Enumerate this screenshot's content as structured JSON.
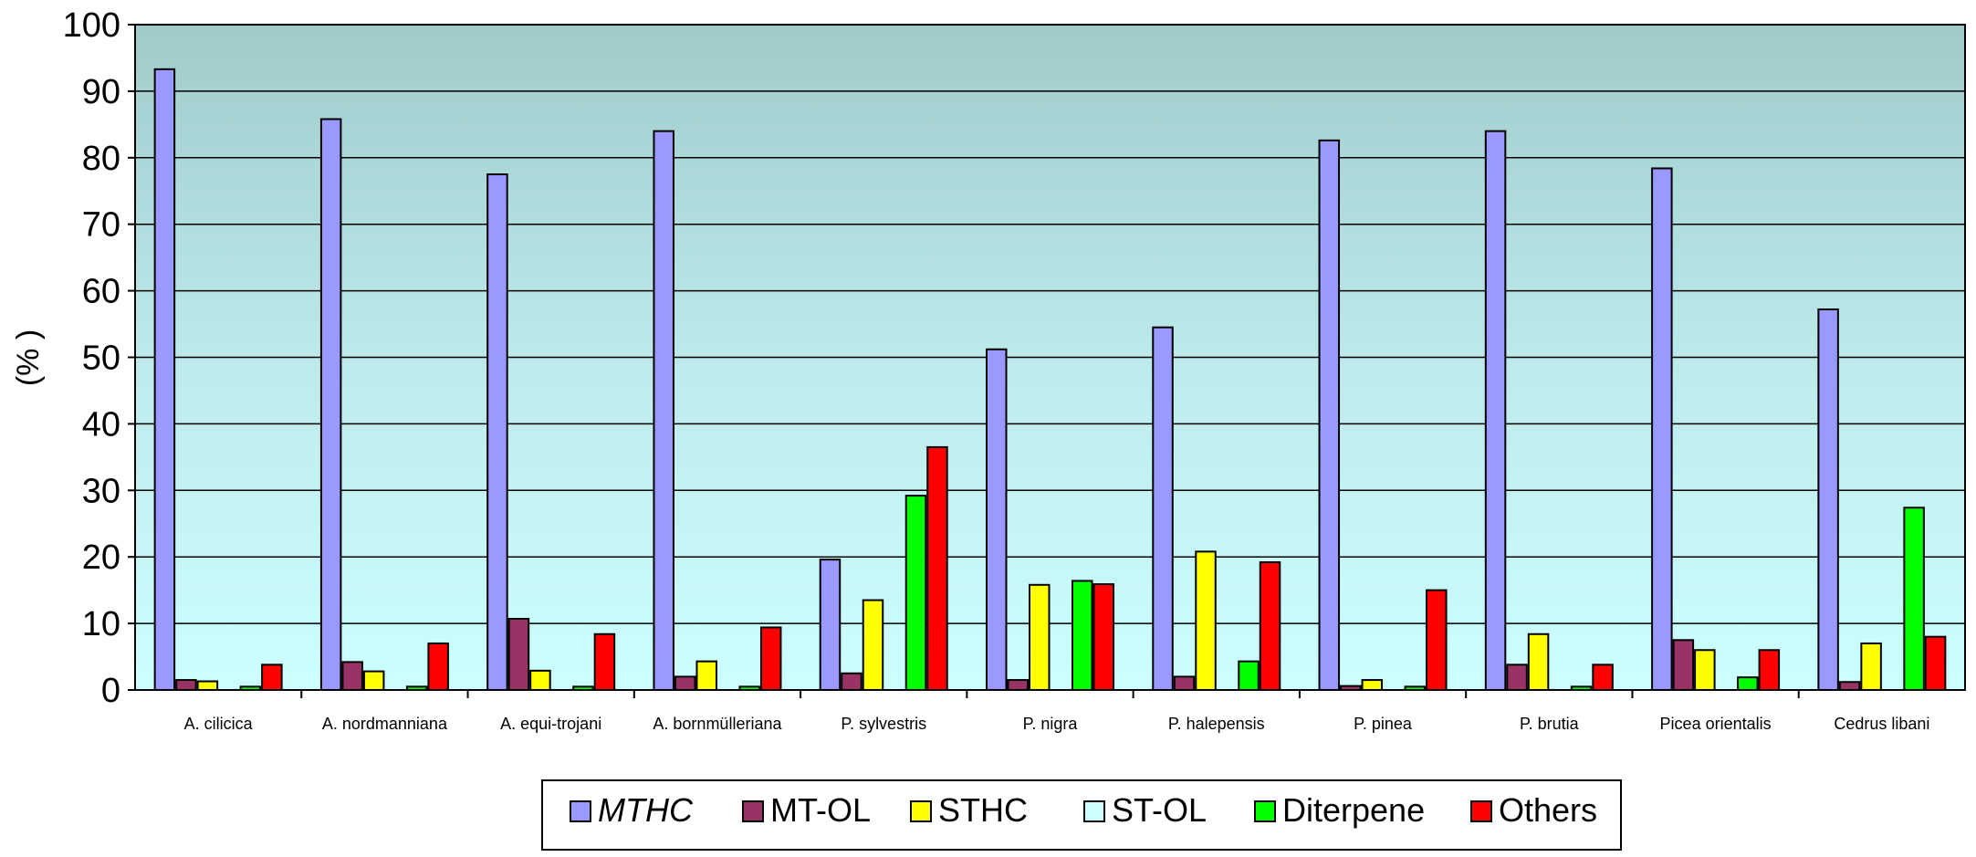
{
  "chart_data": {
    "type": "bar",
    "title": "",
    "xlabel": "",
    "ylabel": "(% )",
    "ylim": [
      0,
      100
    ],
    "yticks": [
      0,
      10,
      20,
      30,
      40,
      50,
      60,
      70,
      80,
      90,
      100
    ],
    "grid": true,
    "legend_position": "bottom",
    "categories": [
      "A. cilicica",
      "A. nordmanniana",
      "A. equi-trojani",
      "A. bornmülleriana",
      "P. sylvestris",
      "P. nigra",
      "P. halepensis",
      "P. pinea",
      "P. brutia",
      "Picea orientalis",
      "Cedrus libani"
    ],
    "series": [
      {
        "name": "MTHC",
        "italic": true,
        "color": "#9999ff",
        "values": [
          93.3,
          85.8,
          77.5,
          84.0,
          19.6,
          51.2,
          54.5,
          82.6,
          84.0,
          78.4,
          57.2
        ]
      },
      {
        "name": "MT-OL",
        "color": "#993366",
        "values": [
          1.5,
          4.2,
          10.7,
          2.0,
          2.5,
          1.5,
          2.0,
          0.6,
          3.8,
          7.5,
          1.2
        ]
      },
      {
        "name": "STHC",
        "color": "#ffff00",
        "values": [
          1.3,
          2.8,
          2.9,
          4.3,
          13.5,
          15.8,
          20.8,
          1.5,
          8.4,
          6.0,
          7.0
        ]
      },
      {
        "name": "ST-OL",
        "color": "#ccffff",
        "values": [
          0.0,
          0.0,
          0.0,
          0.0,
          0.0,
          0.0,
          0.0,
          0.0,
          0.0,
          0.0,
          0.0
        ]
      },
      {
        "name": "Diterpene",
        "color": "#00ff00",
        "values": [
          0.5,
          0.5,
          0.5,
          0.5,
          29.2,
          16.4,
          4.3,
          0.5,
          0.5,
          1.9,
          27.4
        ]
      },
      {
        "name": "Others",
        "color": "#ff0000",
        "values": [
          3.8,
          7.0,
          8.4,
          9.4,
          36.5,
          15.9,
          19.2,
          15.0,
          3.8,
          6.0,
          8.0
        ]
      }
    ]
  }
}
